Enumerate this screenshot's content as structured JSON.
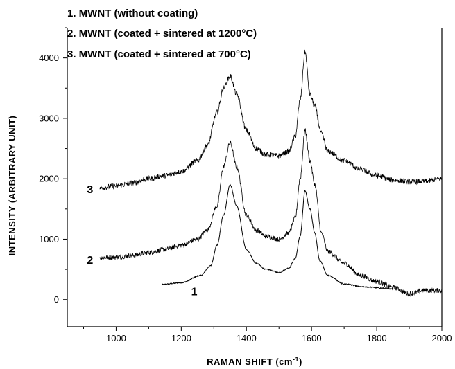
{
  "chart_data": {
    "type": "line",
    "legend_position": "top-left",
    "legend": [
      {
        "text": "1. MWNT (without coating)"
      },
      {
        "text": "2. MWNT (coated + sintered at 1200°C)"
      },
      {
        "text": "3. MWNT (coated + sintered at 700°C)"
      }
    ],
    "xlabel": "RAMAN SHIFT (cm",
    "xlabel_sup": "-1",
    "xlabel_tail": ")",
    "ylabel": "INTENSITY (ARBITRARY UNIT)",
    "xlim": [
      850,
      2000
    ],
    "ylim": [
      -450,
      4500
    ],
    "x_ticks": [
      1000,
      1200,
      1400,
      1600,
      1800,
      2000
    ],
    "y_ticks": [
      0,
      1000,
      2000,
      3000,
      4000
    ],
    "series": [
      {
        "label": "1",
        "label_at": [
          1240,
          140
        ],
        "x": [
          1140,
          1200,
          1260,
          1290,
          1310,
          1330,
          1350,
          1370,
          1400,
          1430,
          1460,
          1500,
          1530,
          1550,
          1565,
          1580,
          1595,
          1610,
          1625,
          1650,
          1700,
          1760,
          1850
        ],
        "y": [
          250,
          280,
          400,
          560,
          900,
          1400,
          1900,
          1550,
          830,
          600,
          500,
          450,
          520,
          680,
          1050,
          1800,
          1500,
          1100,
          650,
          400,
          260,
          210,
          180
        ],
        "noise": 8
      },
      {
        "label": "2",
        "label_at": [
          920,
          660
        ],
        "x": [
          950,
          1000,
          1050,
          1100,
          1150,
          1200,
          1250,
          1280,
          1310,
          1330,
          1350,
          1370,
          1400,
          1430,
          1460,
          1500,
          1530,
          1550,
          1565,
          1580,
          1595,
          1610,
          1630,
          1650,
          1700,
          1750,
          1800,
          1850,
          1900,
          1950,
          2000
        ],
        "y": [
          700,
          700,
          730,
          780,
          830,
          900,
          1000,
          1150,
          1550,
          2200,
          2600,
          2200,
          1400,
          1150,
          1050,
          1000,
          1100,
          1350,
          2000,
          2800,
          2300,
          1900,
          1100,
          800,
          600,
          400,
          300,
          200,
          100,
          150,
          150
        ],
        "noise": 40
      },
      {
        "label": "3",
        "label_at": [
          920,
          1830
        ],
        "x": [
          950,
          1000,
          1050,
          1100,
          1150,
          1200,
          1250,
          1280,
          1310,
          1330,
          1350,
          1370,
          1400,
          1430,
          1460,
          1500,
          1530,
          1550,
          1565,
          1580,
          1595,
          1610,
          1630,
          1650,
          1700,
          1750,
          1800,
          1850,
          1900,
          1950,
          2000
        ],
        "y": [
          1850,
          1880,
          1930,
          2000,
          2050,
          2120,
          2300,
          2550,
          3100,
          3500,
          3700,
          3400,
          2800,
          2500,
          2400,
          2380,
          2450,
          2700,
          3300,
          4100,
          3400,
          3200,
          2750,
          2450,
          2300,
          2150,
          2050,
          1980,
          1950,
          1960,
          2000
        ],
        "noise": 45
      }
    ]
  }
}
